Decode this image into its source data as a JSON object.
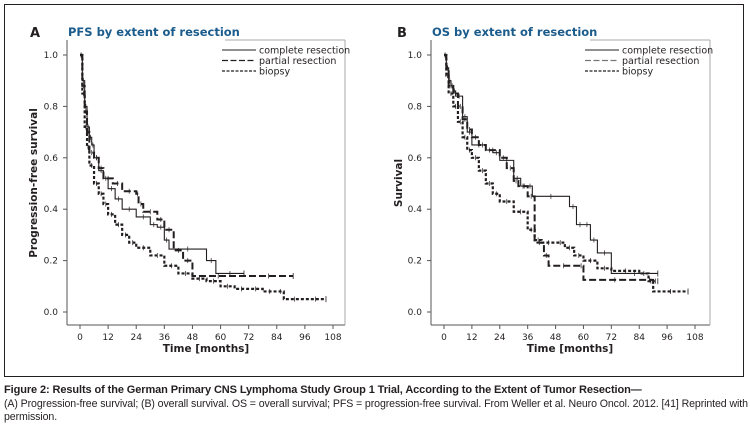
{
  "figure": {
    "caption_bold": "Figure 2: Results of the German Primary CNS Lymphoma Study Group 1 Trial, According to the Extent of Tumor Resection—",
    "caption_text": "(A) Progression-free survival; (B) overall survival. OS = overall survival; PFS = progression-free survival. From Weller et al. Neuro Oncol. 2012. [41] Reprinted with permission.",
    "title_color": "#1b5c8c"
  },
  "chart_data": [
    {
      "type": "line",
      "subtype": "kaplan-meier",
      "panel": "A",
      "title": "PFS by extent of resection",
      "xlabel": "Time [months]",
      "ylabel": "Progression-free survival",
      "xlim": [
        -4,
        114
      ],
      "ylim": [
        -0.05,
        1.05
      ],
      "xticks": [
        0,
        12,
        24,
        36,
        48,
        60,
        72,
        84,
        96,
        108
      ],
      "yticks": [
        "0.0",
        "0.2",
        "0.4",
        "0.6",
        "0.8",
        "1.0"
      ],
      "legend_position": "top-right",
      "series": [
        {
          "name": "complete resection",
          "style": "solid",
          "x": [
            0,
            1,
            2,
            3,
            4,
            5,
            6,
            8,
            10,
            12,
            15,
            18,
            24,
            30,
            33,
            36,
            38,
            54,
            58,
            70
          ],
          "y": [
            1.0,
            0.9,
            0.8,
            0.72,
            0.68,
            0.65,
            0.6,
            0.55,
            0.52,
            0.48,
            0.44,
            0.4,
            0.37,
            0.34,
            0.33,
            0.28,
            0.245,
            0.2,
            0.15,
            0.15
          ]
        },
        {
          "name": "partial resection",
          "style": "long-dash",
          "x": [
            0,
            1,
            2,
            3,
            4,
            6,
            8,
            10,
            14,
            18,
            24,
            25,
            27,
            33,
            36,
            40,
            44,
            48,
            70,
            91
          ],
          "y": [
            1.0,
            0.88,
            0.78,
            0.7,
            0.62,
            0.6,
            0.56,
            0.52,
            0.5,
            0.47,
            0.46,
            0.42,
            0.39,
            0.36,
            0.32,
            0.24,
            0.2,
            0.14,
            0.14,
            0.14
          ]
        },
        {
          "name": "biopsy",
          "style": "short-dash",
          "x": [
            0,
            1,
            2,
            3,
            4,
            6,
            8,
            10,
            12,
            15,
            18,
            21,
            24,
            30,
            36,
            42,
            48,
            54,
            60,
            66,
            72,
            78,
            84,
            87,
            96,
            105
          ],
          "y": [
            1.0,
            0.85,
            0.72,
            0.64,
            0.57,
            0.5,
            0.46,
            0.42,
            0.38,
            0.34,
            0.3,
            0.27,
            0.25,
            0.22,
            0.18,
            0.15,
            0.13,
            0.12,
            0.1,
            0.09,
            0.09,
            0.08,
            0.08,
            0.05,
            0.05,
            0.05
          ]
        }
      ]
    },
    {
      "type": "line",
      "subtype": "kaplan-meier",
      "panel": "B",
      "title": "OS by extent of resection",
      "xlabel": "Time [months]",
      "ylabel": "Survival",
      "xlim": [
        -4,
        114
      ],
      "ylim": [
        -0.05,
        1.05
      ],
      "xticks": [
        0,
        12,
        24,
        36,
        48,
        60,
        72,
        84,
        96,
        108
      ],
      "yticks": [
        "0.0",
        "0.2",
        "0.4",
        "0.6",
        "0.8",
        "1.0"
      ],
      "legend_position": "top-right",
      "series": [
        {
          "name": "complete resection",
          "style": "solid",
          "x": [
            0,
            1,
            2,
            3,
            4,
            5,
            8,
            10,
            12,
            18,
            21,
            24,
            30,
            33,
            36,
            38,
            54,
            57,
            60,
            63,
            66,
            72,
            92
          ],
          "y": [
            1.0,
            0.95,
            0.9,
            0.88,
            0.86,
            0.84,
            0.76,
            0.7,
            0.65,
            0.63,
            0.62,
            0.59,
            0.52,
            0.49,
            0.49,
            0.45,
            0.41,
            0.34,
            0.34,
            0.28,
            0.23,
            0.15,
            0.15
          ]
        },
        {
          "name": "partial resection",
          "style": "long-dash",
          "x": [
            0,
            1,
            2,
            4,
            6,
            8,
            10,
            12,
            15,
            18,
            24,
            27,
            30,
            32,
            36,
            39,
            43,
            45,
            58,
            60,
            87,
            90,
            92
          ],
          "y": [
            1.0,
            0.95,
            0.88,
            0.85,
            0.8,
            0.75,
            0.71,
            0.68,
            0.65,
            0.63,
            0.6,
            0.56,
            0.51,
            0.49,
            0.45,
            0.27,
            0.22,
            0.18,
            0.18,
            0.125,
            0.125,
            0.12,
            0.12
          ]
        },
        {
          "name": "biopsy",
          "style": "short-dash",
          "x": [
            0,
            1,
            2,
            4,
            6,
            8,
            10,
            12,
            15,
            18,
            21,
            24,
            30,
            36,
            39,
            42,
            48,
            52,
            56,
            60,
            66,
            72,
            84,
            88,
            90,
            105
          ],
          "y": [
            1.0,
            0.92,
            0.85,
            0.8,
            0.74,
            0.68,
            0.63,
            0.6,
            0.55,
            0.5,
            0.46,
            0.43,
            0.39,
            0.32,
            0.28,
            0.27,
            0.27,
            0.25,
            0.22,
            0.2,
            0.17,
            0.16,
            0.15,
            0.12,
            0.08,
            0.08
          ]
        }
      ]
    }
  ]
}
